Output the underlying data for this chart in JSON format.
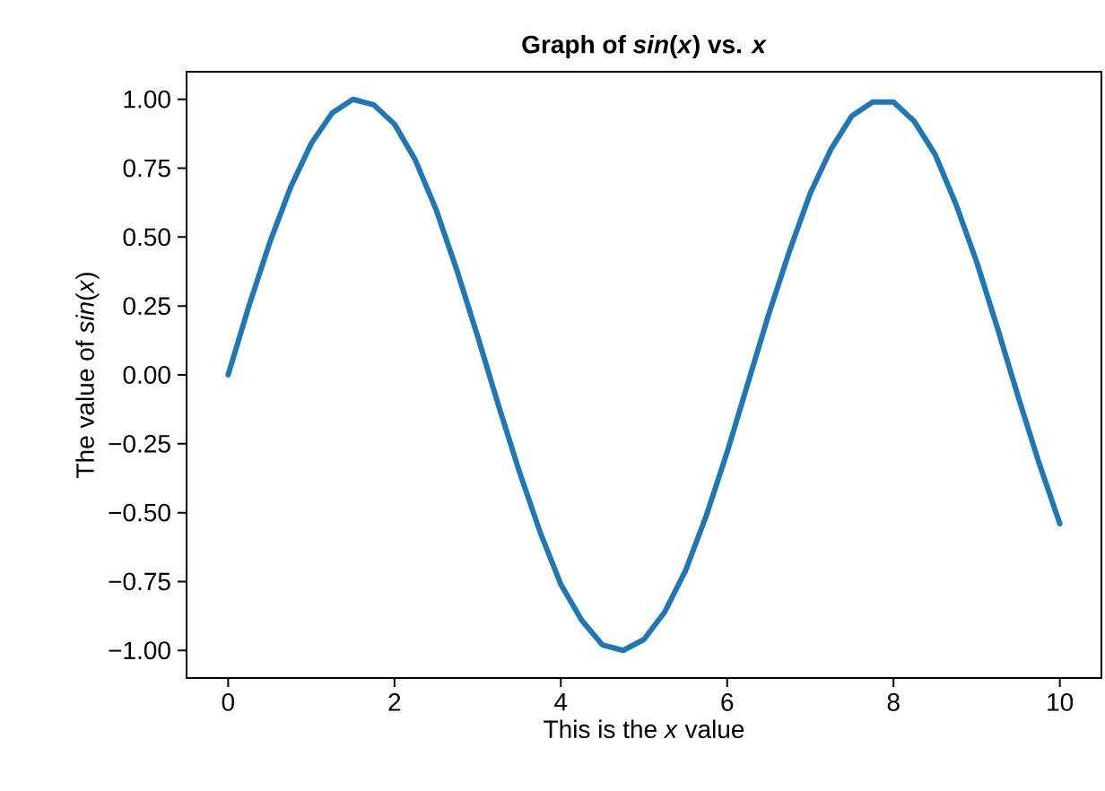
{
  "chart_data": {
    "type": "line",
    "title": "Graph of *sin*(*x*) vs. *x*",
    "xlabel": "This is the *x* value",
    "ylabel": "The value of *sin*(*x*)",
    "x": [
      0,
      0.25,
      0.5,
      0.75,
      1,
      1.25,
      1.5,
      1.75,
      2,
      2.25,
      2.5,
      2.75,
      3,
      3.25,
      3.5,
      3.75,
      4,
      4.25,
      4.5,
      4.75,
      5,
      5.25,
      5.5,
      5.75,
      6,
      6.25,
      6.5,
      6.75,
      7,
      7.25,
      7.5,
      7.75,
      8,
      8.25,
      8.5,
      8.75,
      9,
      9.25,
      9.5,
      9.75,
      10
    ],
    "values": [
      0,
      0.25,
      0.48,
      0.68,
      0.84,
      0.95,
      1.0,
      0.98,
      0.91,
      0.78,
      0.6,
      0.38,
      0.14,
      -0.11,
      -0.35,
      -0.57,
      -0.76,
      -0.89,
      -0.98,
      -1.0,
      -0.96,
      -0.86,
      -0.71,
      -0.51,
      -0.28,
      -0.03,
      0.22,
      0.45,
      0.66,
      0.82,
      0.94,
      0.99,
      0.99,
      0.92,
      0.8,
      0.62,
      0.41,
      0.17,
      -0.08,
      -0.32,
      -0.54
    ],
    "color": "#1f77b4",
    "xlim": [
      -0.5,
      10.5
    ],
    "ylim": [
      -1.1,
      1.1
    ],
    "xticks": [
      0,
      2,
      4,
      6,
      8,
      10
    ],
    "yticks": [
      {
        "value": -1,
        "label": "−1.00"
      },
      {
        "value": -0.75,
        "label": "−0.75"
      },
      {
        "value": -0.5,
        "label": "−0.50"
      },
      {
        "value": -0.25,
        "label": "−0.25"
      },
      {
        "value": 0,
        "label": "0.00"
      },
      {
        "value": 0.25,
        "label": "0.25"
      },
      {
        "value": 0.5,
        "label": "0.50"
      },
      {
        "value": 0.75,
        "label": "0.75"
      },
      {
        "value": 1,
        "label": "1.00"
      }
    ]
  }
}
